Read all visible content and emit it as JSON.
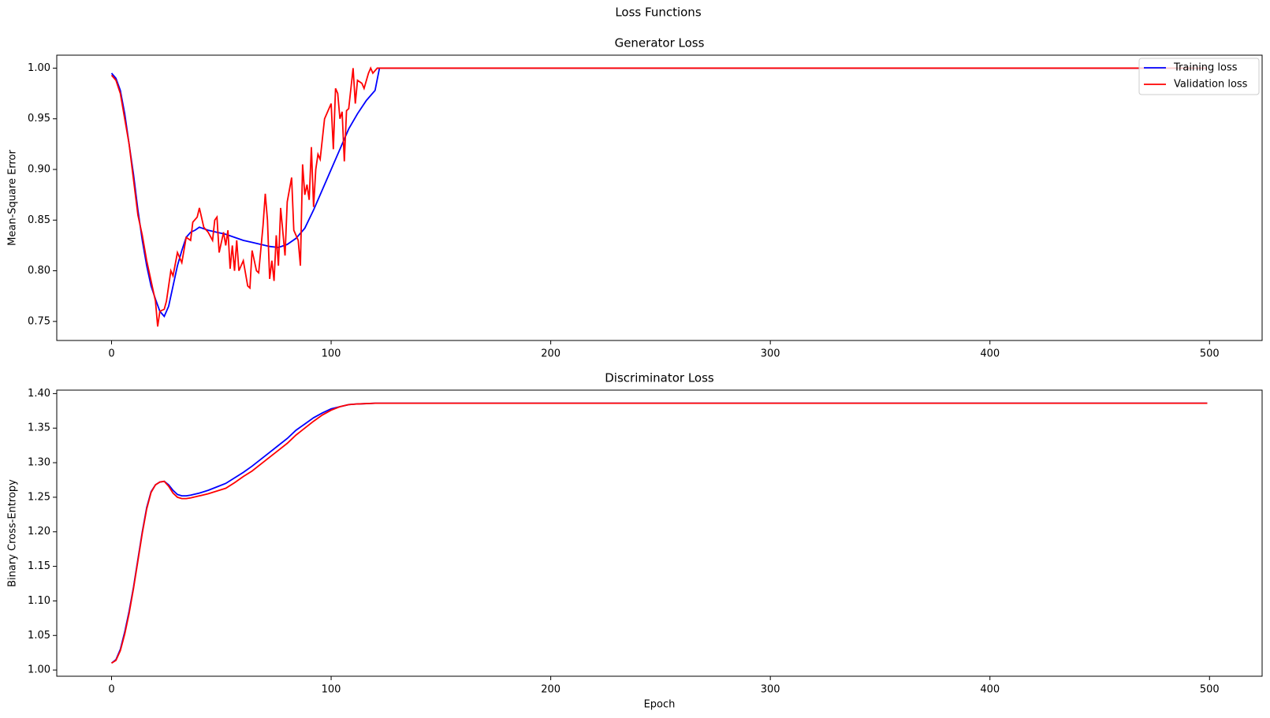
{
  "title": "Loss Functions",
  "chart_data": [
    {
      "type": "line",
      "title": "Generator Loss",
      "ylabel": "Mean-Square Error",
      "xlim": [
        -24.95,
        523.95
      ],
      "xticks": [
        0,
        100,
        200,
        300,
        400,
        500
      ],
      "ylim": [
        0.7312,
        1.0128
      ],
      "yticks": [
        {
          "value": 0.75,
          "label": "0.75"
        },
        {
          "value": 0.8,
          "label": "0.80"
        },
        {
          "value": 0.85,
          "label": "0.85"
        },
        {
          "value": 0.9,
          "label": "0.90"
        },
        {
          "value": 0.95,
          "label": "0.95"
        },
        {
          "value": 1.0,
          "label": "1.00"
        }
      ],
      "legend": "upper right",
      "series": [
        {
          "name": "Training loss",
          "color": "#0000ff",
          "x": [
            0,
            2,
            4,
            6,
            8,
            10,
            12,
            14,
            16,
            18,
            20,
            22,
            24,
            26,
            28,
            30,
            32,
            34,
            36,
            38,
            40,
            44,
            48,
            52,
            56,
            60,
            64,
            68,
            72,
            76,
            80,
            84,
            88,
            92,
            96,
            100,
            104,
            108,
            112,
            116,
            120,
            122,
            499
          ],
          "values": [
            0.995,
            0.99,
            0.978,
            0.955,
            0.925,
            0.895,
            0.86,
            0.83,
            0.805,
            0.785,
            0.772,
            0.76,
            0.755,
            0.765,
            0.785,
            0.805,
            0.82,
            0.833,
            0.838,
            0.84,
            0.843,
            0.84,
            0.838,
            0.836,
            0.833,
            0.83,
            0.828,
            0.826,
            0.824,
            0.823,
            0.826,
            0.832,
            0.842,
            0.86,
            0.88,
            0.9,
            0.92,
            0.94,
            0.955,
            0.968,
            0.978,
            1.0,
            1.0
          ]
        },
        {
          "name": "Validation loss",
          "color": "#ff0000",
          "x": [
            0,
            2,
            4,
            6,
            8,
            10,
            12,
            14,
            16,
            18,
            20,
            21,
            22,
            24,
            25,
            27,
            28,
            30,
            32,
            34,
            36,
            37,
            39,
            40,
            42,
            44,
            46,
            47,
            48,
            49,
            51,
            52,
            53,
            54,
            55,
            56,
            57,
            58,
            60,
            62,
            63,
            64,
            66,
            67,
            69,
            70,
            71,
            72,
            73,
            74,
            75,
            76,
            77,
            79,
            80,
            82,
            83,
            85,
            86,
            87,
            88,
            89,
            90,
            91,
            92,
            93,
            94,
            95,
            96,
            97,
            99,
            100,
            101,
            102,
            103,
            104,
            105,
            106,
            107,
            108,
            109,
            110,
            111,
            112,
            114,
            115,
            117,
            118,
            119,
            121,
            499
          ],
          "values": [
            0.993,
            0.988,
            0.975,
            0.95,
            0.925,
            0.89,
            0.855,
            0.835,
            0.81,
            0.79,
            0.77,
            0.745,
            0.76,
            0.762,
            0.77,
            0.8,
            0.795,
            0.818,
            0.808,
            0.833,
            0.83,
            0.848,
            0.853,
            0.862,
            0.843,
            0.838,
            0.83,
            0.85,
            0.853,
            0.818,
            0.838,
            0.825,
            0.84,
            0.802,
            0.825,
            0.8,
            0.83,
            0.8,
            0.81,
            0.785,
            0.783,
            0.82,
            0.8,
            0.798,
            0.845,
            0.876,
            0.85,
            0.792,
            0.81,
            0.79,
            0.835,
            0.805,
            0.862,
            0.815,
            0.868,
            0.892,
            0.84,
            0.83,
            0.805,
            0.905,
            0.875,
            0.885,
            0.87,
            0.922,
            0.863,
            0.9,
            0.915,
            0.91,
            0.93,
            0.95,
            0.96,
            0.965,
            0.92,
            0.98,
            0.975,
            0.95,
            0.957,
            0.908,
            0.958,
            0.96,
            0.98,
            1.0,
            0.965,
            0.988,
            0.985,
            0.98,
            0.995,
            1.0,
            0.995,
            1.0,
            1.0
          ]
        }
      ]
    },
    {
      "type": "line",
      "title": "Discriminator Loss",
      "ylabel": "Binary Cross-Entropy",
      "xlabel": "Epoch",
      "xlim": [
        -24.95,
        523.95
      ],
      "xticks": [
        0,
        100,
        200,
        300,
        400,
        500
      ],
      "ylim": [
        0.991,
        1.405
      ],
      "yticks": [
        {
          "value": 1.0,
          "label": "1.00"
        },
        {
          "value": 1.05,
          "label": "1.05"
        },
        {
          "value": 1.1,
          "label": "1.10"
        },
        {
          "value": 1.15,
          "label": "1.15"
        },
        {
          "value": 1.2,
          "label": "1.20"
        },
        {
          "value": 1.25,
          "label": "1.25"
        },
        {
          "value": 1.3,
          "label": "1.30"
        },
        {
          "value": 1.35,
          "label": "1.35"
        },
        {
          "value": 1.4,
          "label": "1.40"
        }
      ],
      "series": [
        {
          "name": "Training loss",
          "color": "#0000ff",
          "x": [
            0,
            2,
            4,
            6,
            8,
            10,
            12,
            14,
            16,
            18,
            20,
            22,
            24,
            26,
            28,
            30,
            32,
            34,
            36,
            40,
            44,
            48,
            52,
            56,
            60,
            64,
            68,
            72,
            76,
            80,
            84,
            88,
            92,
            96,
            100,
            104,
            108,
            112,
            120,
            499
          ],
          "values": [
            1.01,
            1.015,
            1.03,
            1.055,
            1.085,
            1.12,
            1.16,
            1.2,
            1.235,
            1.258,
            1.268,
            1.272,
            1.273,
            1.268,
            1.26,
            1.254,
            1.252,
            1.252,
            1.253,
            1.256,
            1.26,
            1.265,
            1.27,
            1.278,
            1.286,
            1.295,
            1.305,
            1.315,
            1.325,
            1.335,
            1.347,
            1.356,
            1.365,
            1.372,
            1.378,
            1.381,
            1.384,
            1.385,
            1.386,
            1.386
          ]
        },
        {
          "name": "Validation loss",
          "color": "#ff0000",
          "x": [
            0,
            2,
            4,
            6,
            8,
            10,
            12,
            14,
            16,
            18,
            20,
            22,
            24,
            26,
            28,
            30,
            32,
            34,
            36,
            40,
            44,
            48,
            52,
            56,
            60,
            64,
            68,
            72,
            76,
            80,
            84,
            88,
            92,
            96,
            100,
            104,
            108,
            112,
            120,
            499
          ],
          "values": [
            1.01,
            1.014,
            1.028,
            1.052,
            1.082,
            1.118,
            1.158,
            1.198,
            1.233,
            1.257,
            1.268,
            1.272,
            1.273,
            1.266,
            1.256,
            1.25,
            1.248,
            1.248,
            1.249,
            1.252,
            1.255,
            1.259,
            1.263,
            1.271,
            1.28,
            1.288,
            1.298,
            1.308,
            1.318,
            1.328,
            1.34,
            1.35,
            1.36,
            1.369,
            1.376,
            1.381,
            1.384,
            1.385,
            1.386,
            1.386
          ]
        }
      ]
    }
  ]
}
